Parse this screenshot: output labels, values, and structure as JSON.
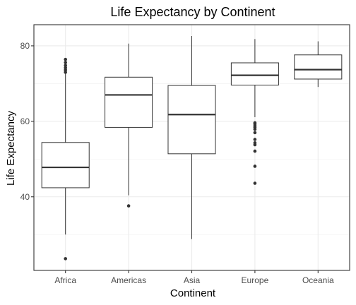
{
  "chart_data": {
    "type": "box",
    "title": "Life Expectancy by Continent",
    "xlabel": "Continent",
    "ylabel": "Life Expectancy",
    "ylim": [
      20.5,
      85.6
    ],
    "yticks": [
      40,
      60,
      80
    ],
    "grid": true,
    "categories": [
      "Africa",
      "Americas",
      "Asia",
      "Europe",
      "Oceania"
    ],
    "boxes": [
      {
        "category": "Africa",
        "whisker_low": 30.0,
        "q1": 42.4,
        "median": 47.8,
        "q3": 54.4,
        "whisker_high": 72.8,
        "outliers": [
          23.6,
          73.0,
          73.6,
          74.2,
          74.8,
          75.6,
          76.4
        ]
      },
      {
        "category": "Americas",
        "whisker_low": 40.4,
        "q1": 58.4,
        "median": 67.0,
        "q3": 71.7,
        "whisker_high": 80.6,
        "outliers": [
          37.6
        ]
      },
      {
        "category": "Asia",
        "whisker_low": 28.8,
        "q1": 51.4,
        "median": 61.8,
        "q3": 69.5,
        "whisker_high": 82.6,
        "outliers": []
      },
      {
        "category": "Europe",
        "whisker_low": 61.1,
        "q1": 69.6,
        "median": 72.2,
        "q3": 75.5,
        "whisker_high": 81.8,
        "outliers": [
          43.6,
          48.1,
          52.1,
          53.8,
          54.3,
          55.2,
          57.0,
          57.9,
          58.4,
          58.8,
          59.3,
          59.6
        ]
      },
      {
        "category": "Oceania",
        "whisker_low": 69.1,
        "q1": 71.2,
        "median": 73.7,
        "q3": 77.6,
        "whisker_high": 81.2,
        "outliers": []
      }
    ]
  }
}
